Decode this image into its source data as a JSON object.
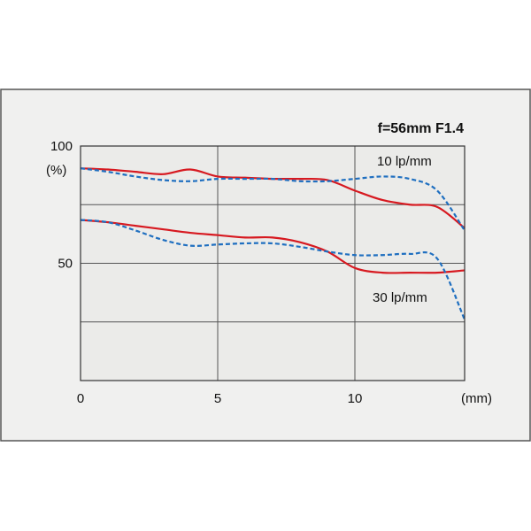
{
  "chart_data": {
    "type": "line",
    "title": "f=56mm F1.4",
    "xlabel": "(mm)",
    "ylabel": "(%)",
    "xlim": [
      0,
      14
    ],
    "ylim": [
      0,
      100
    ],
    "x_ticks": [
      "0",
      "5",
      "10"
    ],
    "y_ticks": [
      "100",
      "50"
    ],
    "grid": true,
    "annotations": [
      "10 lp/mm",
      "30 lp/mm"
    ],
    "colors": {
      "sagittal": "#d71920",
      "meridional": "#1f6fc0",
      "frame_bg": "#f0f0ef",
      "plot_bg": "#ebebe9"
    },
    "series": [
      {
        "group": "10 lp/mm",
        "style": "solid",
        "x": [
          0,
          1,
          2,
          3,
          4,
          5,
          6,
          7,
          8,
          9,
          10,
          11,
          12,
          13,
          14
        ],
        "y": [
          90.5,
          90,
          89,
          88,
          90,
          87,
          86.5,
          86,
          86,
          85.5,
          81,
          77,
          75,
          74,
          65
        ]
      },
      {
        "group": "10 lp/mm",
        "style": "dashed",
        "x": [
          0,
          1,
          2,
          3,
          4,
          5,
          6,
          7,
          8,
          9,
          10,
          11,
          12,
          13,
          14
        ],
        "y": [
          90.5,
          89,
          87,
          85.5,
          85,
          86,
          86,
          86,
          85,
          85,
          86,
          87,
          86,
          81,
          64
        ]
      },
      {
        "group": "30 lp/mm",
        "style": "solid",
        "x": [
          0,
          1,
          2,
          3,
          4,
          5,
          6,
          7,
          8,
          9,
          10,
          11,
          12,
          13,
          14
        ],
        "y": [
          68.5,
          67.5,
          66,
          64.5,
          63,
          62,
          61,
          61,
          59,
          55,
          48,
          46,
          46,
          46,
          47
        ]
      },
      {
        "group": "30 lp/mm",
        "style": "dashed",
        "x": [
          0,
          1,
          2,
          3,
          4,
          5,
          6,
          7,
          8,
          9,
          10,
          11,
          12,
          13,
          14
        ],
        "y": [
          68.5,
          67.5,
          64,
          60,
          57.5,
          58,
          58.5,
          58.5,
          57,
          55,
          53.5,
          53.5,
          54,
          52,
          26
        ]
      }
    ]
  }
}
